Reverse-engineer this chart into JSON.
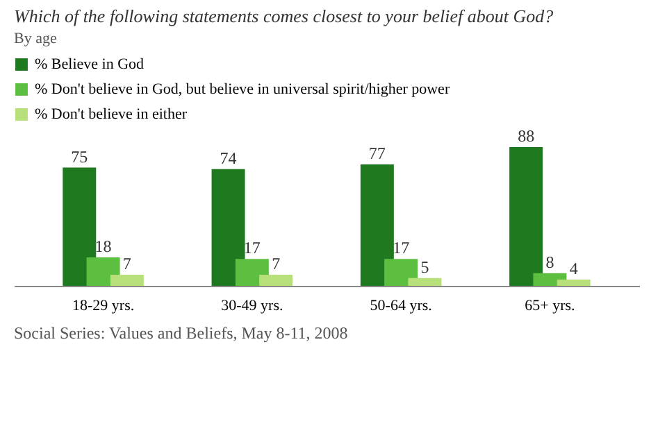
{
  "chart_data": {
    "type": "bar",
    "title": "Which of the following statements comes closest to your belief about God?",
    "subtitle": "By age",
    "categories": [
      "18-29 yrs.",
      "30-49 yrs.",
      "50-64 yrs.",
      "65+ yrs."
    ],
    "series": [
      {
        "name": "% Believe in God",
        "color": "#1f7a1f",
        "values": [
          75,
          74,
          77,
          88
        ]
      },
      {
        "name": "% Don't believe in God, but believe in universal spirit/higher power",
        "color": "#5cbf40",
        "values": [
          18,
          17,
          17,
          8
        ]
      },
      {
        "name": "% Don't believe in either",
        "color": "#b8e07a",
        "values": [
          7,
          7,
          5,
          4
        ]
      }
    ],
    "data_labels": true,
    "legend": "top left",
    "annotations": [
      "Social Series: Values and Beliefs, May 8-11, 2008"
    ]
  }
}
